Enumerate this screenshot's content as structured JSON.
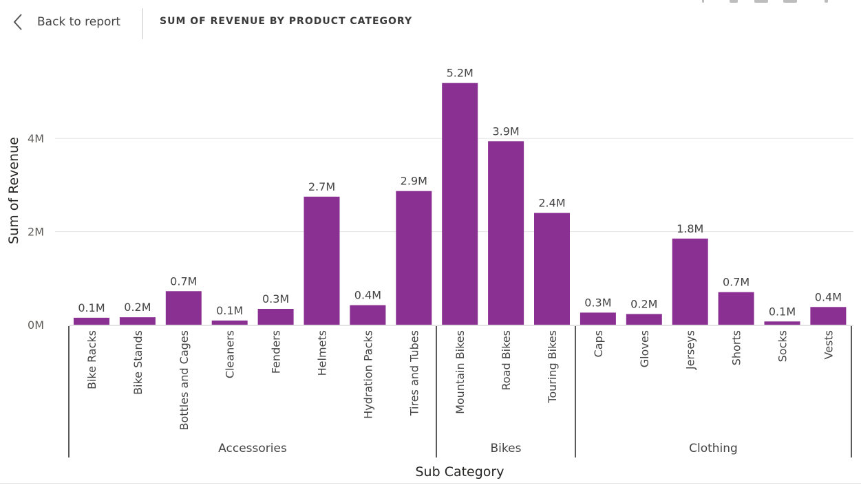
{
  "header": {
    "back_label": "Back to report",
    "title": "SUM OF REVENUE BY PRODUCT CATEGORY"
  },
  "icons": [
    "chevron-left-icon"
  ],
  "colors": {
    "bar": "#8a3093",
    "grid": "#e6e6e6",
    "text": "#252423"
  },
  "chart_data": {
    "type": "bar",
    "title": "SUM OF REVENUE BY PRODUCT CATEGORY",
    "xlabel": "Sub Category",
    "ylabel": "Sum of Revenue",
    "ylim": [
      0,
      5.2
    ],
    "y_unit": "M",
    "yticks": [
      {
        "value": 0,
        "label": "0M"
      },
      {
        "value": 2,
        "label": "2M"
      },
      {
        "value": 4,
        "label": "4M"
      }
    ],
    "grid": true,
    "groups": [
      {
        "name": "Accessories",
        "categories": [
          "Bike Racks",
          "Bike Stands",
          "Bottles and Cages",
          "Cleaners",
          "Fenders",
          "Helmets",
          "Hydration Packs",
          "Tires and Tubes"
        ],
        "values": [
          0.15,
          0.16,
          0.72,
          0.09,
          0.34,
          2.75,
          0.42,
          2.87
        ],
        "labels": [
          "0.1M",
          "0.2M",
          "0.7M",
          "0.1M",
          "0.3M",
          "2.7M",
          "0.4M",
          "2.9M"
        ]
      },
      {
        "name": "Bikes",
        "categories": [
          "Mountain Bikes",
          "Road Bikes",
          "Touring Bikes"
        ],
        "values": [
          5.19,
          3.94,
          2.4
        ],
        "labels": [
          "5.2M",
          "3.9M",
          "2.4M"
        ]
      },
      {
        "name": "Clothing",
        "categories": [
          "Caps",
          "Gloves",
          "Jerseys",
          "Shorts",
          "Socks",
          "Vests"
        ],
        "values": [
          0.26,
          0.23,
          1.85,
          0.7,
          0.07,
          0.38
        ],
        "labels": [
          "0.3M",
          "0.2M",
          "1.8M",
          "0.7M",
          "0.1M",
          "0.4M"
        ]
      }
    ]
  }
}
